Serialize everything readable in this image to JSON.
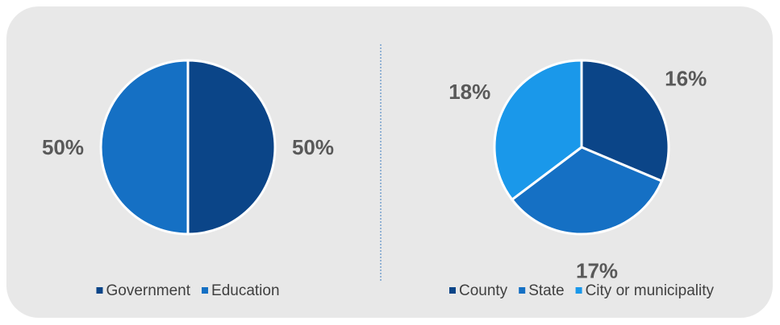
{
  "chart_data": [
    {
      "type": "pie",
      "categories": [
        "Government",
        "Education"
      ],
      "values": [
        50,
        50
      ],
      "value_labels": [
        "50%",
        "50%"
      ],
      "colors": [
        "#0b4588",
        "#1570c4"
      ],
      "legend": "bottom"
    },
    {
      "type": "pie",
      "categories": [
        "County",
        "State",
        "City or municipality"
      ],
      "values": [
        16,
        17,
        18
      ],
      "value_labels": [
        "16%",
        "17%",
        "18%"
      ],
      "colors": [
        "#0b4588",
        "#1570c4",
        "#1a98ea"
      ],
      "legend": "bottom"
    }
  ]
}
